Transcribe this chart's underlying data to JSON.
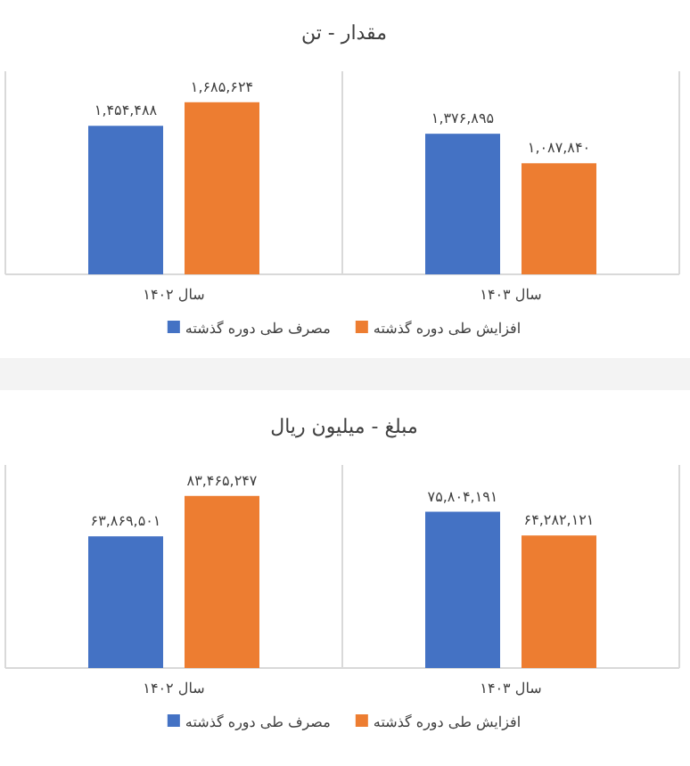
{
  "chart_data": [
    {
      "type": "bar",
      "title": "مقدار - تن",
      "categories": [
        "سال ۱۴۰۲",
        "سال ۱۴۰۳"
      ],
      "grid": "x",
      "legend": "bottom",
      "series": [
        {
          "name": "مصرف طی دوره گذشته",
          "color": "#4472c4",
          "values": [
            1454488,
            1376895
          ],
          "value_labels": [
            "۱,۴۵۴,۴۸۸",
            "۱,۳۷۶,۸۹۵"
          ]
        },
        {
          "name": "افزایش طی دوره گذشته",
          "color": "#ed7d31",
          "values": [
            1685624,
            1087840
          ],
          "value_labels": [
            "۱,۶۸۵,۶۲۴",
            "۱,۰۸۷,۸۴۰"
          ]
        }
      ]
    },
    {
      "type": "bar",
      "title": "مبلغ - میلیون ریال",
      "categories": [
        "سال ۱۴۰۲",
        "سال ۱۴۰۳"
      ],
      "grid": "x",
      "legend": "bottom",
      "series": [
        {
          "name": "مصرف طی دوره گذشته",
          "color": "#4472c4",
          "values": [
            63869501,
            75804191
          ],
          "value_labels": [
            "۶۳,۸۶۹,۵۰۱",
            "۷۵,۸۰۴,۱۹۱"
          ]
        },
        {
          "name": "افزایش طی دوره گذشته",
          "color": "#ed7d31",
          "values": [
            83465247,
            64282121
          ],
          "value_labels": [
            "۸۳,۴۶۵,۲۴۷",
            "۶۴,۲۸۲,۱۲۱"
          ]
        }
      ]
    }
  ]
}
